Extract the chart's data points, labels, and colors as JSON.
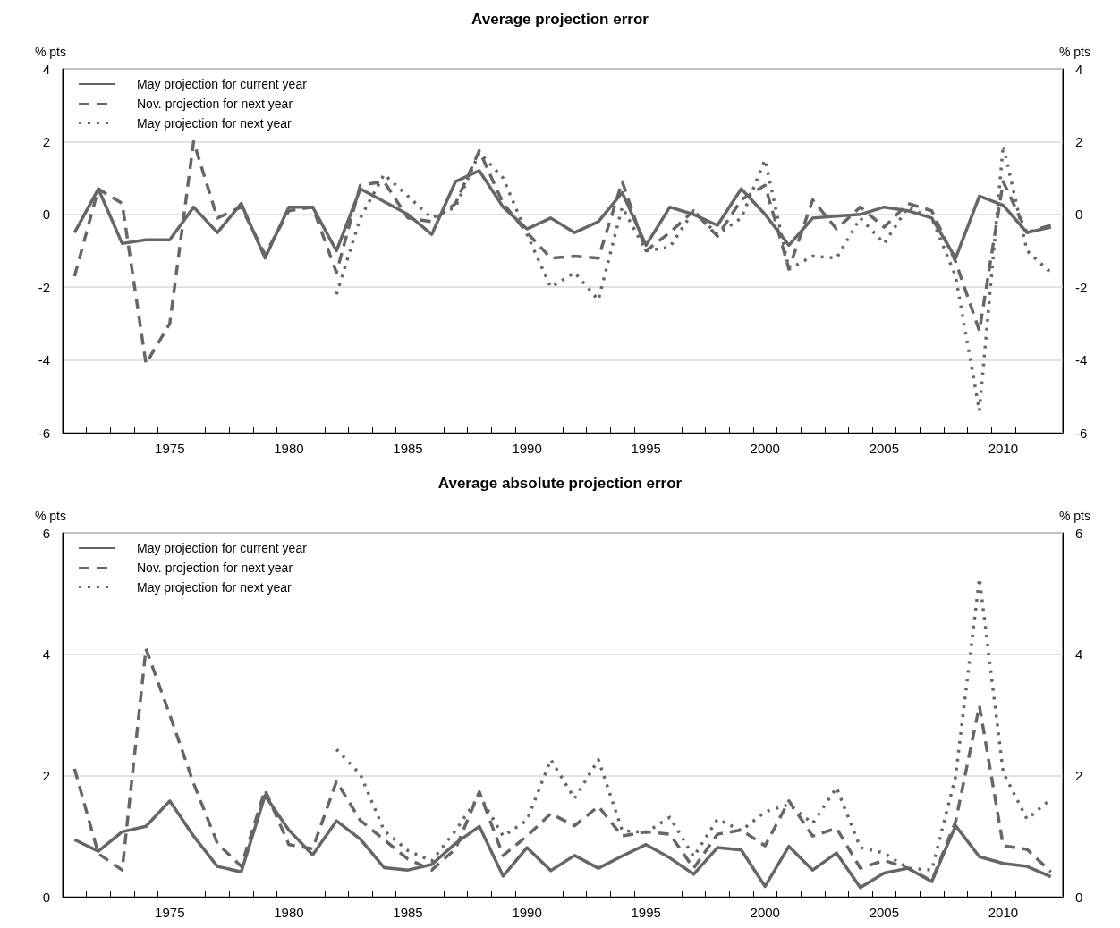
{
  "chart_data": [
    {
      "type": "line",
      "title": "Average projection error",
      "ylabel": "% pts",
      "y2label": "% pts",
      "categories": [
        null,
        null,
        null,
        null,
        "1975",
        null,
        null,
        null,
        null,
        "1980",
        null,
        null,
        null,
        null,
        "1985",
        null,
        null,
        null,
        null,
        "1990",
        null,
        null,
        null,
        null,
        "1995",
        null,
        null,
        null,
        null,
        "2000",
        null,
        null,
        null,
        null,
        "2005",
        null,
        null,
        null,
        null,
        "2010",
        null,
        null
      ],
      "series": [
        {
          "name": "May projection for current year",
          "color": "#666666",
          "line_style": "solid",
          "values": [
            -0.5,
            0.7,
            -0.8,
            -0.7,
            -0.7,
            0.2,
            -0.5,
            0.3,
            -1.2,
            0.2,
            0.2,
            -1.0,
            0.7,
            0.35,
            0.0,
            -0.55,
            0.9,
            1.2,
            0.2,
            -0.4,
            -0.1,
            -0.5,
            -0.2,
            0.6,
            -0.85,
            0.2,
            0.0,
            -0.3,
            0.7,
            0.0,
            -0.85,
            -0.1,
            -0.05,
            0.0,
            0.2,
            0.1,
            -0.1,
            -1.2,
            0.5,
            0.25,
            -0.5,
            -0.35
          ]
        },
        {
          "name": "Nov. projection for next year",
          "color": "#666666",
          "line_style": "dashed",
          "values": [
            -1.7,
            0.7,
            0.3,
            -4.1,
            -3.0,
            2.0,
            -0.1,
            0.2,
            -1.1,
            0.1,
            0.2,
            -1.6,
            0.8,
            0.9,
            -0.1,
            -0.2,
            0.3,
            1.75,
            0.3,
            -0.5,
            -1.2,
            -1.15,
            -1.2,
            0.9,
            -1.0,
            -0.5,
            0.1,
            -0.6,
            0.4,
            0.8,
            -1.5,
            0.4,
            -0.4,
            0.2,
            -0.35,
            0.3,
            0.1,
            -1.3,
            -3.2,
            0.9,
            -0.5,
            -0.3
          ]
        },
        {
          "name": "May projection for next year",
          "color": "#666666",
          "line_style": "dotted",
          "values": [
            null,
            null,
            null,
            null,
            null,
            null,
            null,
            null,
            null,
            null,
            null,
            -2.2,
            -0.1,
            1.1,
            0.5,
            -0.1,
            0.2,
            1.7,
            1.0,
            -0.55,
            -2.0,
            -1.6,
            -2.35,
            0.2,
            -1.0,
            -0.9,
            0.1,
            -0.55,
            -0.1,
            1.5,
            -1.5,
            -1.15,
            -1.2,
            -0.1,
            -0.8,
            0.2,
            -0.1,
            -1.7,
            -5.4,
            1.9,
            -1.0,
            -1.6
          ]
        }
      ],
      "ylim": [
        -6,
        4
      ],
      "yticks": [
        -6,
        -4,
        -2,
        0,
        2,
        4
      ],
      "y2lim": [
        -6,
        4
      ],
      "y2ticks": [
        -6,
        -4,
        -2,
        0,
        2,
        4
      ],
      "grid": "y",
      "legend": "top left",
      "marker": "none",
      "ref_lines": [
        {
          "axis": "y",
          "value": 0,
          "color": "#000000"
        }
      ]
    },
    {
      "type": "line",
      "title": "Average absolute projection error",
      "ylabel": "% pts",
      "y2label": "% pts",
      "categories": [
        null,
        null,
        null,
        null,
        "1975",
        null,
        null,
        null,
        null,
        "1980",
        null,
        null,
        null,
        null,
        "1985",
        null,
        null,
        null,
        null,
        "1990",
        null,
        null,
        null,
        null,
        "1995",
        null,
        null,
        null,
        null,
        "2000",
        null,
        null,
        null,
        null,
        "2005",
        null,
        null,
        null,
        null,
        "2010",
        null,
        null
      ],
      "series": [
        {
          "name": "May projection for current year",
          "color": "#666666",
          "line_style": "solid",
          "values": [
            0.94,
            0.75,
            1.07,
            1.16,
            1.58,
            1.0,
            0.5,
            0.41,
            1.67,
            1.1,
            0.69,
            1.25,
            0.95,
            0.48,
            0.44,
            0.53,
            0.88,
            1.16,
            0.34,
            0.81,
            0.43,
            0.68,
            0.47,
            0.67,
            0.86,
            0.64,
            0.37,
            0.81,
            0.77,
            0.17,
            0.83,
            0.44,
            0.72,
            0.15,
            0.39,
            0.47,
            0.25,
            1.17,
            0.66,
            0.55,
            0.5,
            0.33
          ]
        },
        {
          "name": "Nov. projection for next year",
          "color": "#666666",
          "line_style": "dashed",
          "values": [
            2.11,
            0.71,
            0.44,
            4.09,
            3.0,
            1.87,
            0.88,
            0.5,
            1.76,
            0.86,
            0.79,
            1.9,
            1.26,
            0.94,
            0.62,
            0.44,
            0.79,
            1.73,
            0.68,
            1.0,
            1.37,
            1.17,
            1.49,
            1.0,
            1.07,
            1.03,
            0.47,
            1.03,
            1.1,
            0.84,
            1.58,
            1.0,
            1.13,
            0.47,
            0.6,
            0.47,
            0.26,
            1.24,
            3.15,
            0.84,
            0.78,
            0.41
          ]
        },
        {
          "name": "May projection for next year",
          "color": "#666666",
          "line_style": "dotted",
          "values": [
            null,
            null,
            null,
            null,
            null,
            null,
            null,
            null,
            null,
            null,
            null,
            2.43,
            2.02,
            1.09,
            0.76,
            0.59,
            1.09,
            1.67,
            1.0,
            1.26,
            2.26,
            1.62,
            2.26,
            1.09,
            1.06,
            1.31,
            0.66,
            1.28,
            1.09,
            1.4,
            1.52,
            1.21,
            1.8,
            0.81,
            0.72,
            0.47,
            0.44,
            1.98,
            5.25,
            2.05,
            1.28,
            1.61
          ]
        }
      ],
      "ylim": [
        0,
        6
      ],
      "yticks": [
        0,
        2,
        4,
        6
      ],
      "y2lim": [
        0,
        6
      ],
      "y2ticks": [
        0,
        2,
        4,
        6
      ],
      "grid": "y",
      "legend": "top left",
      "marker": "none"
    }
  ]
}
